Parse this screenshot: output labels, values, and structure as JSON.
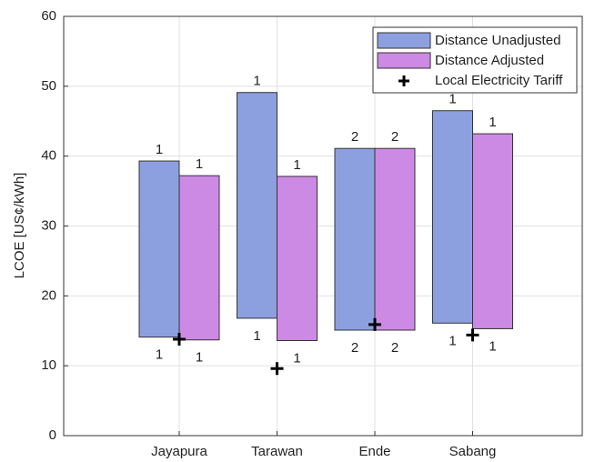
{
  "chart_data": {
    "type": "floating_bar",
    "ylabel": "LCOE [US¢/kWh]",
    "categories": [
      "Jayapura",
      "Tarawan",
      "Ende",
      "Sabang"
    ],
    "ylim": [
      0,
      60
    ],
    "yticks": [
      0,
      10,
      20,
      30,
      40,
      50,
      60
    ],
    "grid": true,
    "legend": "upper right",
    "series": [
      {
        "name": "Distance Unadjusted",
        "color": "#8ca0e0",
        "low": [
          14.1,
          16.8,
          15.1,
          16.1
        ],
        "high": [
          39.3,
          49.1,
          41.1,
          46.5
        ],
        "top_labels": [
          1,
          1,
          2,
          1
        ],
        "bottom_labels": [
          1,
          1,
          2,
          1
        ]
      },
      {
        "name": "Distance Adjusted",
        "color": "#cc8ae4",
        "low": [
          13.7,
          13.6,
          15.1,
          15.3
        ],
        "high": [
          37.2,
          37.1,
          41.1,
          43.2
        ],
        "top_labels": [
          1,
          1,
          2,
          1
        ],
        "bottom_labels": [
          1,
          1,
          2,
          1
        ]
      }
    ],
    "markers": {
      "name": "Local Electricity Tariff",
      "color": "#000000",
      "values": [
        13.8,
        9.6,
        15.9,
        14.4
      ]
    }
  }
}
